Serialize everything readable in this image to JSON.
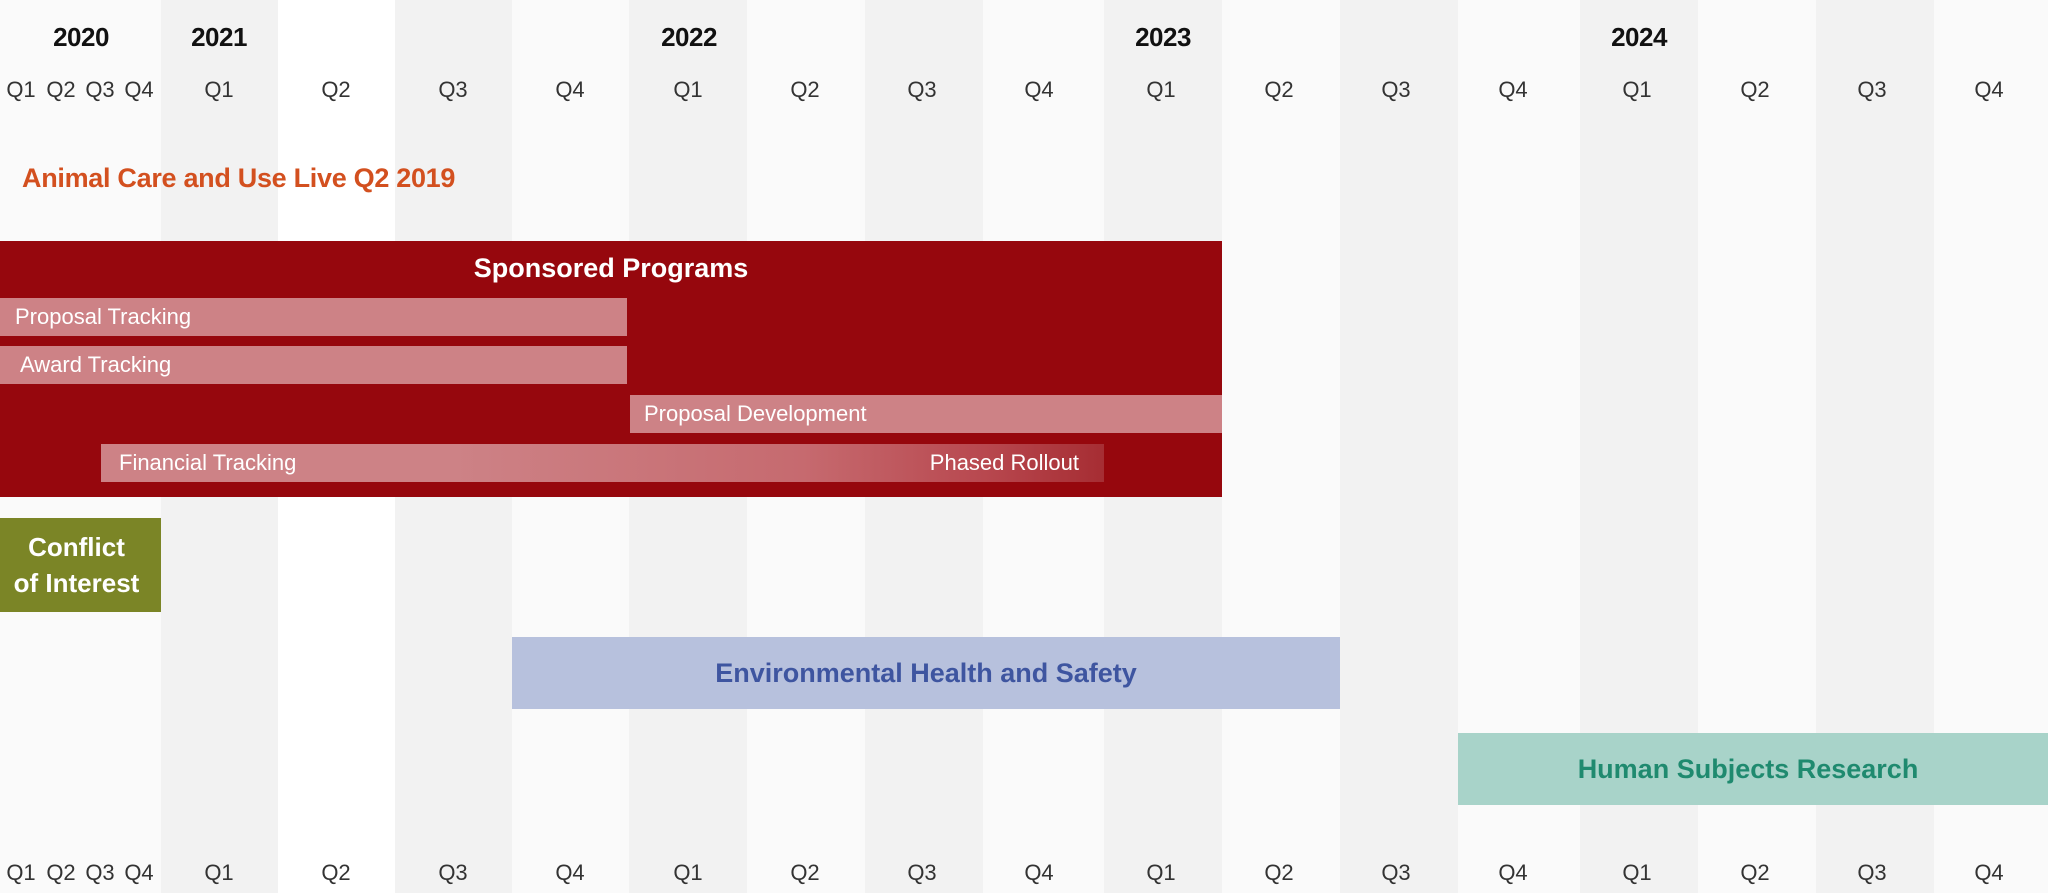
{
  "years": [
    {
      "label": "2020"
    },
    {
      "label": "2021"
    },
    {
      "label": "2022"
    },
    {
      "label": "2023"
    },
    {
      "label": "2024"
    }
  ],
  "quarters_top": [
    "Q1",
    "Q2",
    "Q3",
    "Q4",
    "Q1",
    "Q2",
    "Q3",
    "Q4",
    "Q1",
    "Q2",
    "Q3",
    "Q4",
    "Q1",
    "Q2",
    "Q3",
    "Q4",
    "Q1",
    "Q2",
    "Q3",
    "Q4"
  ],
  "quarters_bottom": [
    "Q1",
    "Q2",
    "Q3",
    "Q4",
    "Q1",
    "Q2",
    "Q3",
    "Q4",
    "Q1",
    "Q2",
    "Q3",
    "Q4",
    "Q1",
    "Q2",
    "Q3",
    "Q4",
    "Q1",
    "Q2",
    "Q3",
    "Q4"
  ],
  "animal_care": {
    "label": "Animal Care and Use Live Q2 2019",
    "color": "#d3501f"
  },
  "sponsored_programs": {
    "title": "Sponsored Programs",
    "color": "#96070d",
    "subitems": {
      "proposal_tracking": "Proposal Tracking",
      "award_tracking": "Award Tracking",
      "proposal_development": "Proposal Development",
      "financial_tracking": "Financial Tracking",
      "phased_rollout": "Phased Rollout"
    }
  },
  "conflict_of_interest": {
    "line1": "Conflict",
    "line2": "of Interest",
    "color": "#7b8526"
  },
  "environmental_health": {
    "label": "Environmental Health and Safety",
    "color": "#b7c1dd",
    "text_color": "#3e55a0"
  },
  "human_subjects": {
    "label": "Human Subjects Research",
    "color": "#a8d3c9",
    "text_color": "#1f8a6f"
  }
}
